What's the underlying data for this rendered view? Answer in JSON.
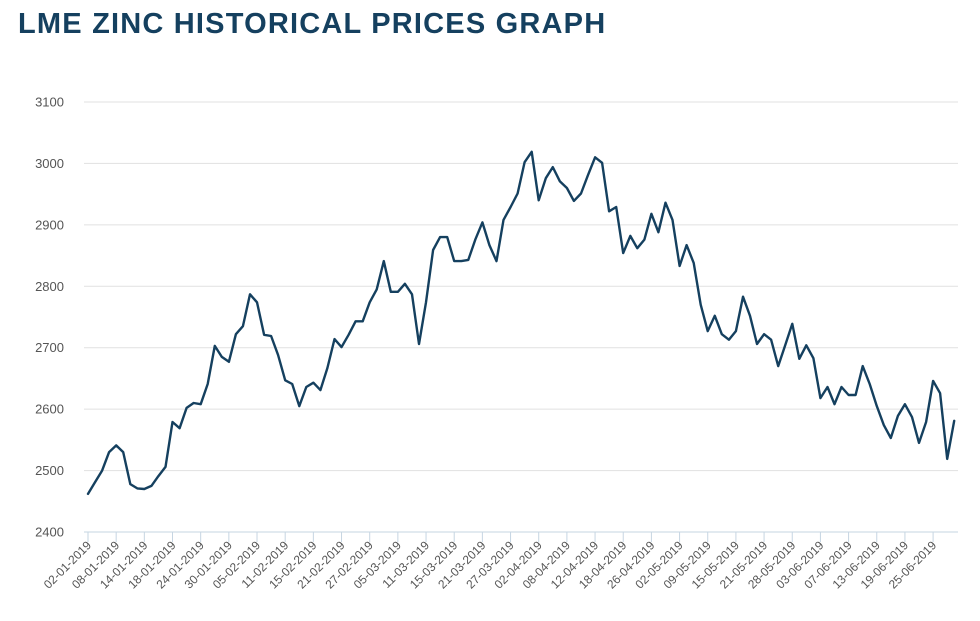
{
  "chart_data": {
    "type": "line",
    "title": "LME ZINC HISTORICAL PRICES GRAPH",
    "xlabel": "",
    "ylabel": "",
    "ylim": [
      2400,
      3100
    ],
    "yticks": [
      2400,
      2500,
      2600,
      2700,
      2800,
      2900,
      3000,
      3100
    ],
    "grid": true,
    "legend": "none",
    "line_color": "#15405f",
    "xtick_labels": [
      "02-01-2019",
      "08-01-2019",
      "14-01-2019",
      "18-01-2019",
      "24-01-2019",
      "30-01-2019",
      "05-02-2019",
      "11-02-2019",
      "15-02-2019",
      "21-02-2019",
      "27-02-2019",
      "05-03-2019",
      "11-03-2019",
      "15-03-2019",
      "21-03-2019",
      "27-03-2019",
      "02-04-2019",
      "08-04-2019",
      "12-04-2019",
      "18-04-2019",
      "26-04-2019",
      "02-05-2019",
      "09-05-2019",
      "15-05-2019",
      "21-05-2019",
      "28-05-2019",
      "03-06-2019",
      "07-06-2019",
      "13-06-2019",
      "19-06-2019",
      "25-06-2019"
    ],
    "points_per_tick": 4,
    "series": [
      {
        "name": "LME Zinc",
        "values": [
          2462,
          2481,
          2500,
          2530,
          2541,
          2530,
          2478,
          2471,
          2470,
          2475,
          2491,
          2506,
          2579,
          2569,
          2602,
          2610,
          2608,
          2641,
          2703,
          2685,
          2677,
          2722,
          2735,
          2787,
          2774,
          2721,
          2719,
          2688,
          2647,
          2641,
          2605,
          2636,
          2643,
          2631,
          2667,
          2714,
          2701,
          2721,
          2743,
          2743,
          2774,
          2795,
          2841,
          2791,
          2791,
          2804,
          2787,
          2706,
          2774,
          2859,
          2880,
          2880,
          2841,
          2841,
          2843,
          2876,
          2904,
          2867,
          2841,
          2908,
          2929,
          2951,
          3002,
          3019,
          2940,
          2976,
          2994,
          2971,
          2960,
          2939,
          2951,
          2981,
          3010,
          3001,
          2922,
          2929,
          2854,
          2882,
          2862,
          2876,
          2918,
          2888,
          2936,
          2908,
          2833,
          2867,
          2838,
          2770,
          2727,
          2752,
          2722,
          2713,
          2727,
          2783,
          2752,
          2706,
          2722,
          2713,
          2670,
          2704,
          2739,
          2682,
          2704,
          2683,
          2618,
          2636,
          2608,
          2636,
          2623,
          2623,
          2670,
          2641,
          2605,
          2574,
          2553,
          2589,
          2608,
          2587,
          2545,
          2579,
          2646,
          2626,
          2519,
          2581
        ]
      }
    ]
  }
}
